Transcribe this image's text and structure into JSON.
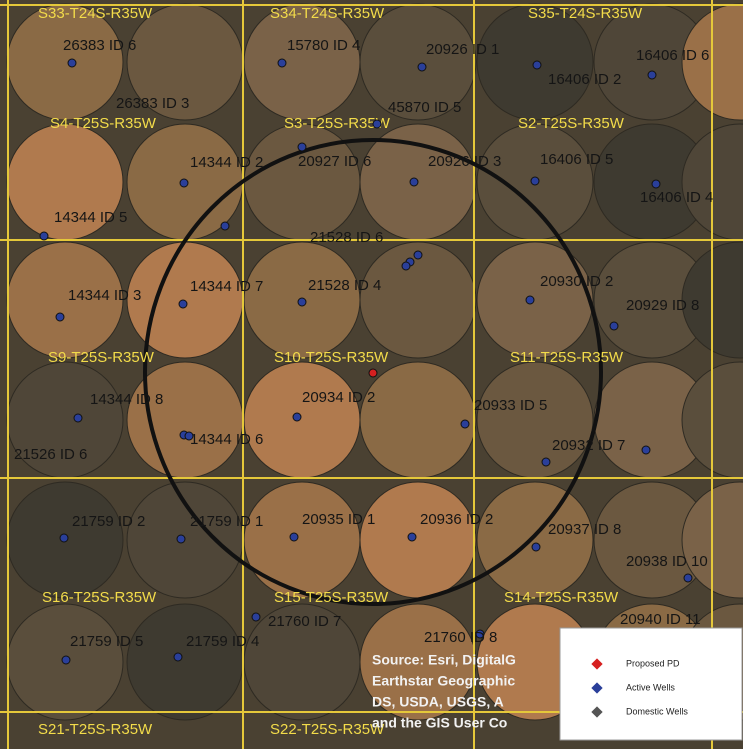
{
  "sections": [
    "S33-T24S-R35W",
    "S34-T24S-R35W",
    "S35-T24S-R35W",
    "S4-T25S-R35W",
    "S3-T25S-R35W",
    "S2-T25S-R35W",
    "S9-T25S-R35W",
    "S10-T25S-R35W",
    "S11-T25S-R35W",
    "S16-T25S-R35W",
    "S15-T25S-R35W",
    "S14-T25S-R35W",
    "S21-T25S-R35W",
    "S22-T25S-R35W"
  ],
  "wells": [
    "26383 ID 6",
    "15780 ID 4",
    "20926 ID 1",
    "16406 ID 6",
    "16406 ID 2",
    "26383 ID 3",
    "45870 ID 5",
    "14344 ID 2",
    "20927 ID 6",
    "20926 ID 3",
    "16406 ID 5",
    "16406 ID 4",
    "14344 ID 5",
    "21528 ID 6",
    "14344 ID 3",
    "14344 ID 7",
    "21528 ID 4",
    "20930 ID 2",
    "20929 ID 8",
    "14344 ID 8",
    "14344 ID 6",
    "20934 ID 2",
    "20933 ID 5",
    "21526 ID 6",
    "20932 ID 7",
    "21759 ID 2",
    "21759 ID 1",
    "20935 ID 1",
    "20936 ID 2",
    "20937 ID 8",
    "20938 ID 10",
    "20940 ID 11",
    "21760 ID 7",
    "21760 ID 8",
    "21759 ID 5",
    "21759 ID 4"
  ],
  "source": [
    "Source: Esri, DigitalG",
    "Earthstar Geographic",
    "DS, USDA, USGS, A",
    "and the GIS User Co"
  ],
  "legend": [
    {
      "label": "Proposed PD",
      "color": "#d62020"
    },
    {
      "label": "Active Wells",
      "color": "#2a3f9a"
    },
    {
      "label": "Domestic Wells",
      "color": "#555555"
    }
  ]
}
